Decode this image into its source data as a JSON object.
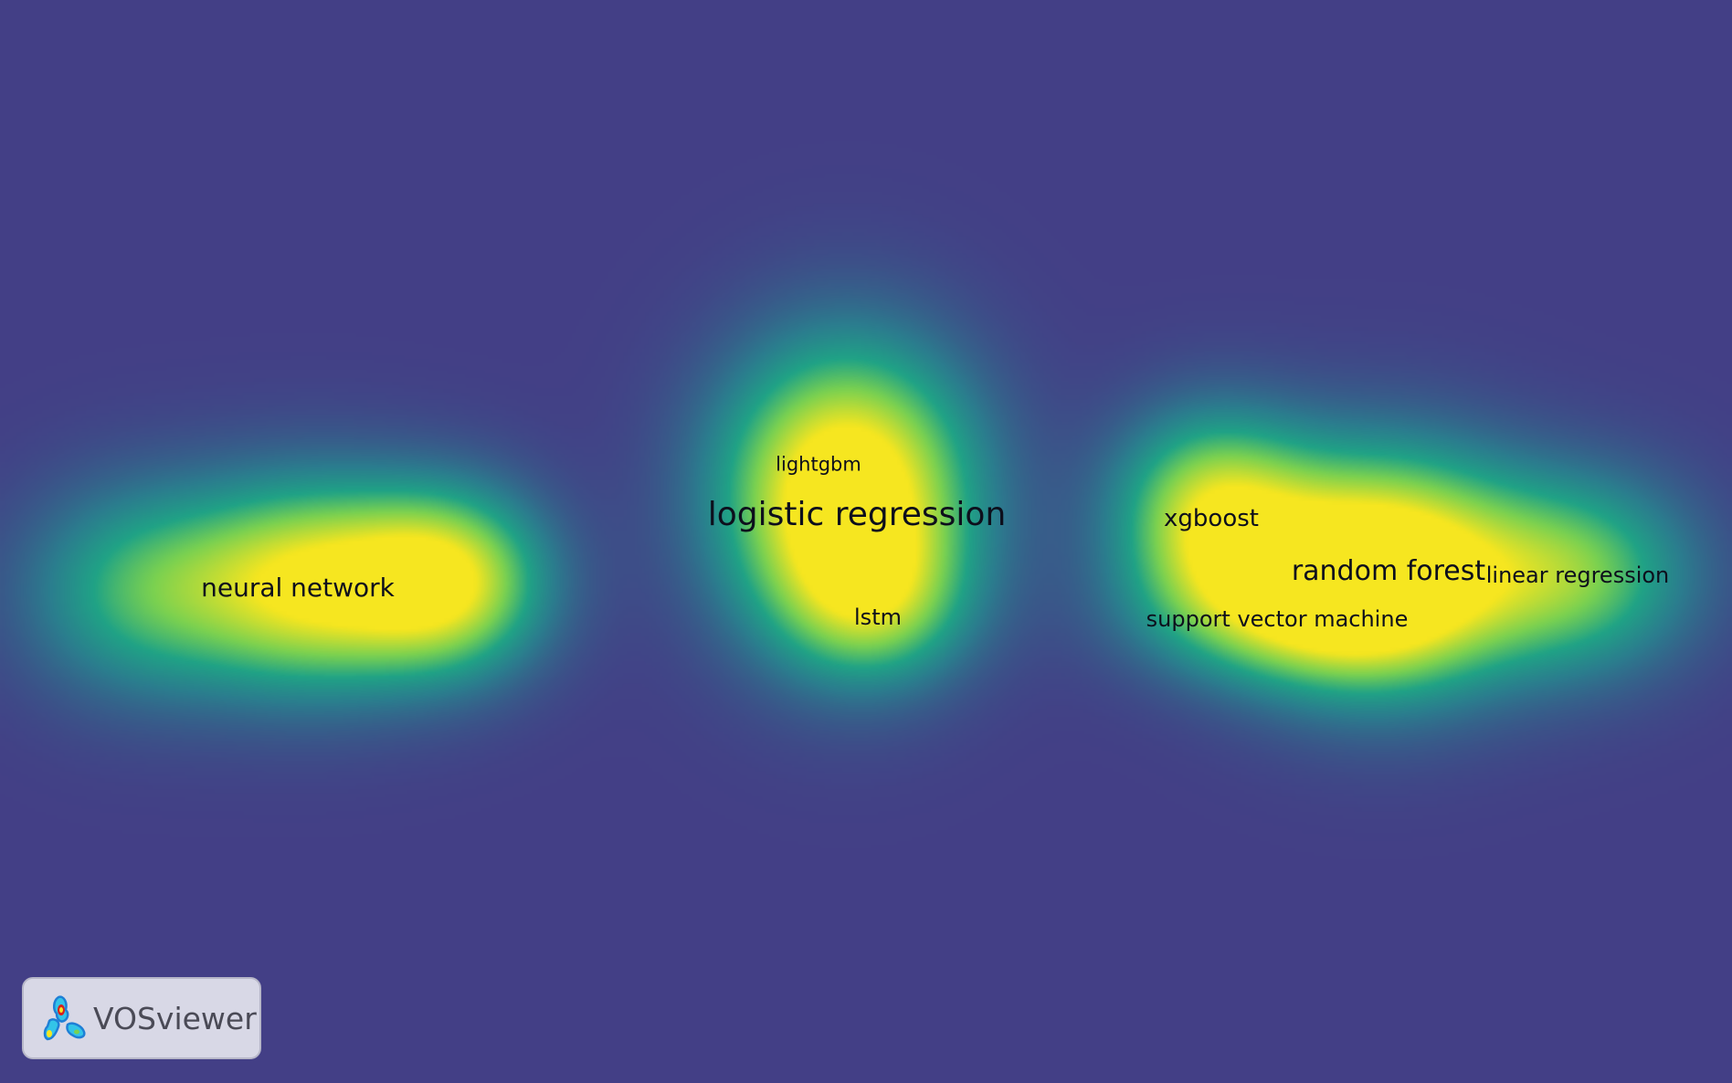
{
  "map": {
    "view": "density visualization",
    "background_color": "#433f86",
    "color_scale": [
      "#433f86",
      "#2b7e8e",
      "#20a386",
      "#7ad151",
      "#f6e620"
    ],
    "terms": [
      {
        "id": "logistic-regression",
        "label": "logistic regression"
      },
      {
        "id": "neural-network",
        "label": "neural network"
      },
      {
        "id": "random-forest",
        "label": "random forest"
      },
      {
        "id": "xgboost",
        "label": "xgboost"
      },
      {
        "id": "linear-regression",
        "label": "linear regression"
      },
      {
        "id": "support-vector-machine",
        "label": "support vector machine"
      },
      {
        "id": "lstm",
        "label": "lstm"
      },
      {
        "id": "lightgbm",
        "label": "lightgbm"
      }
    ]
  },
  "brand": {
    "name": "VOSviewer",
    "logo_icon": "vosviewer-logo-icon"
  }
}
